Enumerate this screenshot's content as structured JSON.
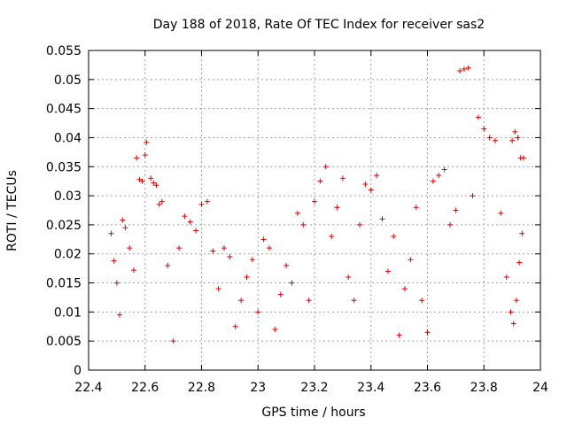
{
  "chart_data": {
    "type": "scatter",
    "title": "Day 188 of 2018, Rate Of TEC Index for receiver sas2",
    "xlabel": "GPS time / hours",
    "ylabel": "ROTI / TECUs",
    "xlim": [
      22.4,
      24
    ],
    "ylim": [
      0,
      0.055
    ],
    "grid": true,
    "x_ticks": [
      22.4,
      22.6,
      22.8,
      23,
      23.2,
      23.4,
      23.6,
      23.8,
      24
    ],
    "x_tick_labels": [
      "22.4",
      "22.6",
      "22.8",
      "23",
      "23.2",
      "23.4",
      "23.6",
      "23.8",
      "24"
    ],
    "y_ticks": [
      0,
      0.005,
      0.01,
      0.015,
      0.02,
      0.025,
      0.03,
      0.035,
      0.04,
      0.045,
      0.05,
      0.055
    ],
    "y_tick_labels": [
      "0",
      "0.005",
      "0.01",
      "0.015",
      "0.02",
      "0.025",
      "0.03",
      "0.035",
      "0.04",
      "0.045",
      "0.05",
      "0.055"
    ],
    "marker": "+",
    "color": "#e00000",
    "series": [
      {
        "name": "sas2",
        "points": [
          [
            22.48,
            0.0235
          ],
          [
            22.49,
            0.0188
          ],
          [
            22.5,
            0.015
          ],
          [
            22.51,
            0.0095
          ],
          [
            22.52,
            0.0258
          ],
          [
            22.53,
            0.0245
          ],
          [
            22.545,
            0.021
          ],
          [
            22.56,
            0.0172
          ],
          [
            22.57,
            0.0365
          ],
          [
            22.58,
            0.0328
          ],
          [
            22.59,
            0.0325
          ],
          [
            22.6,
            0.037
          ],
          [
            22.605,
            0.0392
          ],
          [
            22.62,
            0.033
          ],
          [
            22.63,
            0.0322
          ],
          [
            22.64,
            0.0318
          ],
          [
            22.65,
            0.0285
          ],
          [
            22.66,
            0.029
          ],
          [
            22.68,
            0.018
          ],
          [
            22.7,
            0.005
          ],
          [
            22.72,
            0.021
          ],
          [
            22.74,
            0.0265
          ],
          [
            22.76,
            0.0255
          ],
          [
            22.78,
            0.024
          ],
          [
            22.8,
            0.0285
          ],
          [
            22.82,
            0.029
          ],
          [
            22.84,
            0.0205
          ],
          [
            22.86,
            0.014
          ],
          [
            22.88,
            0.021
          ],
          [
            22.9,
            0.0195
          ],
          [
            22.92,
            0.0075
          ],
          [
            22.94,
            0.012
          ],
          [
            22.96,
            0.016
          ],
          [
            22.98,
            0.019
          ],
          [
            23.0,
            0.01
          ],
          [
            23.02,
            0.0225
          ],
          [
            23.04,
            0.021
          ],
          [
            23.06,
            0.007
          ],
          [
            23.08,
            0.013
          ],
          [
            23.1,
            0.018
          ],
          [
            23.12,
            0.015
          ],
          [
            23.14,
            0.027
          ],
          [
            23.16,
            0.025
          ],
          [
            23.18,
            0.012
          ],
          [
            23.2,
            0.029
          ],
          [
            23.22,
            0.0325
          ],
          [
            23.24,
            0.035
          ],
          [
            23.26,
            0.023
          ],
          [
            23.28,
            0.028
          ],
          [
            23.3,
            0.033
          ],
          [
            23.32,
            0.016
          ],
          [
            23.34,
            0.012
          ],
          [
            23.36,
            0.025
          ],
          [
            23.38,
            0.032
          ],
          [
            23.4,
            0.031
          ],
          [
            23.42,
            0.0335
          ],
          [
            23.44,
            0.026
          ],
          [
            23.46,
            0.017
          ],
          [
            23.48,
            0.023
          ],
          [
            23.5,
            0.006
          ],
          [
            23.52,
            0.014
          ],
          [
            23.54,
            0.019
          ],
          [
            23.56,
            0.028
          ],
          [
            23.58,
            0.012
          ],
          [
            23.6,
            0.0065
          ],
          [
            23.62,
            0.0325
          ],
          [
            23.64,
            0.0335
          ],
          [
            23.66,
            0.0345
          ],
          [
            23.68,
            0.025
          ],
          [
            23.7,
            0.0275
          ],
          [
            23.715,
            0.0515
          ],
          [
            23.73,
            0.0518
          ],
          [
            23.745,
            0.052
          ],
          [
            23.76,
            0.03
          ],
          [
            23.78,
            0.0435
          ],
          [
            23.8,
            0.0415
          ],
          [
            23.82,
            0.04
          ],
          [
            23.84,
            0.0395
          ],
          [
            23.86,
            0.027
          ],
          [
            23.88,
            0.016
          ],
          [
            23.9,
            0.0395
          ],
          [
            23.91,
            0.041
          ],
          [
            23.92,
            0.04
          ],
          [
            23.93,
            0.0365
          ],
          [
            23.94,
            0.0365
          ],
          [
            23.935,
            0.0235
          ],
          [
            23.925,
            0.0185
          ],
          [
            23.915,
            0.012
          ],
          [
            23.905,
            0.008
          ],
          [
            23.895,
            0.01
          ]
        ]
      }
    ]
  }
}
